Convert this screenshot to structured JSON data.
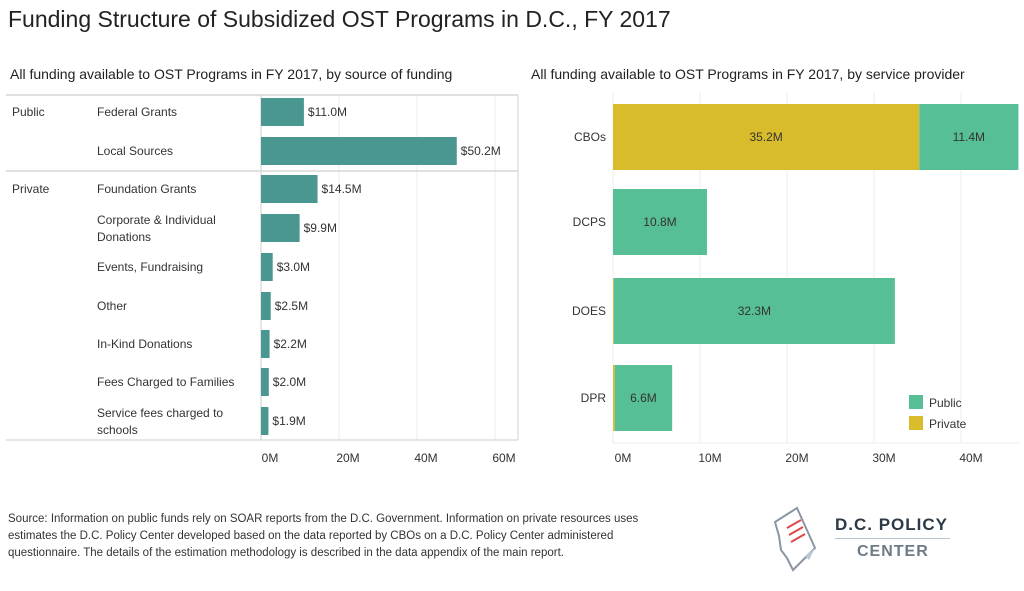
{
  "title": "Funding Structure of Subsidized OST Programs in D.C., FY 2017",
  "colors": {
    "teal": "#4a9691",
    "public": "#57bf95",
    "private": "#d9bc2b"
  },
  "chart_data": [
    {
      "type": "bar",
      "orientation": "horizontal",
      "title": "All funding available to OST Programs in FY 2017, by source of funding",
      "groups": [
        {
          "name": "Public",
          "categories": [
            "Federal Grants",
            "Local Sources"
          ],
          "values": [
            11.0,
            50.2
          ],
          "labels": [
            "$11.0M",
            "$50.2M"
          ]
        },
        {
          "name": "Private",
          "categories": [
            "Foundation Grants",
            "Corporate & Individual Donations",
            "Events, Fundraising",
            "Other",
            "In-Kind Donations",
            "Fees Charged to Families",
            "Service fees charged to schools"
          ],
          "values": [
            14.5,
            9.9,
            3.0,
            2.5,
            2.2,
            2.0,
            1.9
          ],
          "labels": [
            "$14.5M",
            "$9.9M",
            "$3.0M",
            "$2.5M",
            "$2.2M",
            "$2.0M",
            "$1.9M"
          ]
        }
      ],
      "xlabel": "",
      "ylabel": "",
      "xlim": [
        0,
        65
      ],
      "ticks": [
        0,
        20,
        40,
        60
      ],
      "tick_labels": [
        "0M",
        "20M",
        "40M",
        "60M"
      ],
      "grid": true
    },
    {
      "type": "bar",
      "orientation": "horizontal",
      "stacked": true,
      "title": "All funding available to OST Programs in FY 2017, by service provider",
      "categories": [
        "CBOs",
        "DCPS",
        "DOES",
        "DPR"
      ],
      "series": [
        {
          "name": "Private",
          "values": [
            35.2,
            0,
            0.1,
            0.2
          ],
          "labels": [
            "35.2M",
            "",
            "",
            ""
          ]
        },
        {
          "name": "Public",
          "values": [
            11.4,
            10.8,
            32.3,
            6.6
          ],
          "labels": [
            "11.4M",
            "10.8M",
            "32.3M",
            "6.6M"
          ]
        }
      ],
      "legend": {
        "position": "bottom-right",
        "entries": [
          "Public",
          "Private"
        ]
      },
      "xlim": [
        0,
        47
      ],
      "ticks": [
        0,
        10,
        20,
        30,
        40
      ],
      "tick_labels": [
        "0M",
        "10M",
        "20M",
        "30M",
        "40M"
      ],
      "grid": true
    }
  ],
  "source": "Source: Information on public funds rely on SOAR reports from the D.C. Government. Information on private resources uses estimates the D.C. Policy Center developed based on the data  reported by CBOs on a D.C. Policy Center administered questionnaire. The details of the estimation methodology is described in the data appendix of the main report.",
  "logo": {
    "line1": "D.C. POLICY",
    "line2": "CENTER"
  }
}
